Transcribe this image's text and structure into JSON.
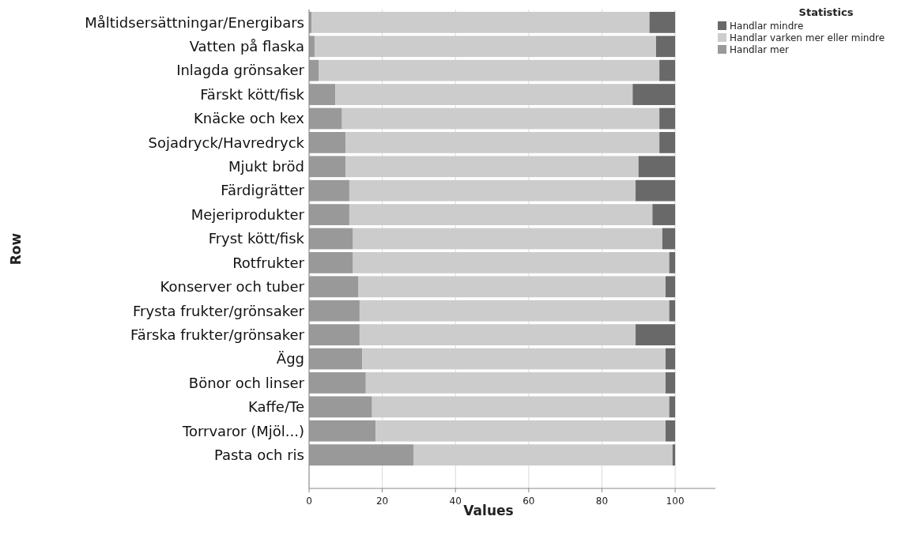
{
  "chart_data": {
    "type": "bar",
    "orientation": "horizontal",
    "stacked": true,
    "xlabel": "Values",
    "ylabel": "Row",
    "legend_title": "Statistics",
    "legend": "top right",
    "grid": "x",
    "categories": [
      "Måltidsersättningar/Energibars",
      "Vatten på flaska",
      "Inlagda grönsaker",
      "Färskt kött/fisk",
      "Knäcke och kex",
      "Sojadryck/Havredryck",
      "Mjukt bröd",
      "Färdigrätter",
      "Mejeriprodukter",
      "Fryst kött/fisk",
      "Rotfrukter",
      "Konserver och tuber",
      "Frysta frukter/grönsaker",
      "Färska frukter/grönsaker",
      "Ägg",
      "Bönor och linser",
      "Kaffe/Te",
      "Torrvaror (Mjöl...)",
      "Pasta och ris"
    ],
    "series": [
      {
        "name": "Handlar mer",
        "color": "#999999",
        "values": [
          0.7,
          1.5,
          2.6,
          7.2,
          9,
          10,
          10,
          11,
          11,
          12,
          12,
          13.5,
          13.8,
          13.8,
          14.5,
          15.5,
          17.2,
          18.2,
          28.5
        ]
      },
      {
        "name": "Handlar varken mer eller mindre",
        "color": "#cccccc",
        "values": [
          92.3,
          93.3,
          93.1,
          81.2,
          86.7,
          85.7,
          80,
          78.2,
          82.8,
          84.5,
          86.4,
          83.9,
          84.6,
          75.4,
          82.9,
          81.9,
          81.2,
          79.2,
          70.8
        ]
      },
      {
        "name": "Handlar mindre",
        "color": "#696969",
        "values": [
          7,
          5.2,
          4.3,
          11.6,
          4.3,
          4.3,
          10,
          10.8,
          6.2,
          3.5,
          1.6,
          2.6,
          1.6,
          10.8,
          2.6,
          2.6,
          1.6,
          2.6,
          0.7
        ]
      }
    ],
    "xlim": [
      0,
      111
    ],
    "xticks": [
      0,
      20,
      40,
      60,
      80,
      100
    ]
  }
}
